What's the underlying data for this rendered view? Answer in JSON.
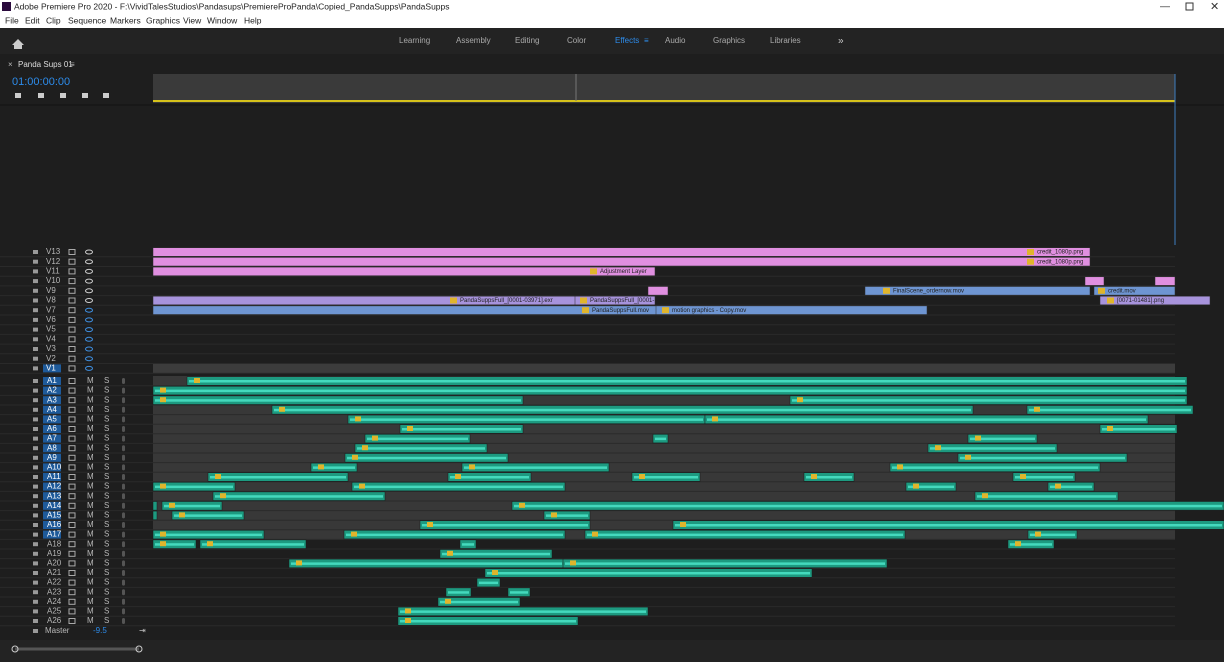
{
  "window": {
    "title": "Adobe Premiere Pro 2020 - F:\\VividTalesStudios\\Pandasups\\PremiereProPanda\\Copied_PandaSupps\\PandaSupps"
  },
  "menu": [
    "File",
    "Edit",
    "Clip",
    "Sequence",
    "Markers",
    "Graphics",
    "View",
    "Window",
    "Help"
  ],
  "workspaces": {
    "items": [
      "Learning",
      "Assembly",
      "Editing",
      "Color",
      "Effects",
      "Audio",
      "Graphics",
      "Libraries"
    ],
    "active": "Effects"
  },
  "sequence": {
    "name": "Panda Sups 01",
    "timecode": "01:00:00:00"
  },
  "video_tracks": [
    "V13",
    "V12",
    "V11",
    "V10",
    "V9",
    "V8",
    "V7",
    "V6",
    "V5",
    "V4",
    "V3",
    "V2",
    "V1"
  ],
  "audio_tracks": [
    "A1",
    "A2",
    "A3",
    "A4",
    "A5",
    "A6",
    "A7",
    "A8",
    "A9",
    "A10",
    "A11",
    "A12",
    "A13",
    "A14",
    "A15",
    "A16",
    "A17",
    "A18",
    "A19",
    "A20",
    "A21",
    "A22",
    "A23",
    "A24",
    "A25",
    "A26"
  ],
  "master": {
    "label": "Master",
    "value": "-9.5"
  },
  "clips": [
    {
      "label": "credit_1080p.png"
    },
    {
      "label": "credit_1080p.png"
    },
    {
      "label": "Adjustment Layer"
    },
    {
      "label": "FinalScene_ordernow.mov"
    },
    {
      "label": "credit.mov"
    },
    {
      "label": "PandaSuppsFull_[0001-03971].exr"
    },
    {
      "label": "PandaSuppsFull_[0001-"
    },
    {
      "label": "[0071-01481].png"
    },
    {
      "label": "PandaSuppsFull.mov"
    },
    {
      "label": "motion graphics - Copy.mov"
    }
  ]
}
